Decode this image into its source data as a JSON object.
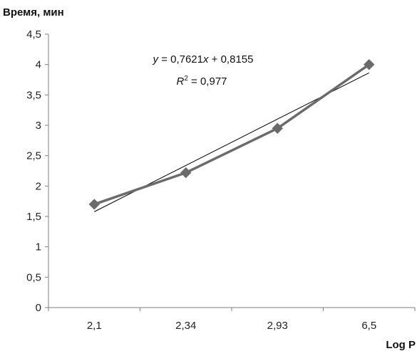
{
  "chart_data": {
    "type": "line",
    "ylabel": "Время, мин",
    "xlabel": "Log P",
    "categories": [
      "2,1",
      "2,34",
      "2,93",
      "6,5"
    ],
    "series": [
      {
        "values": [
          1.7,
          2.22,
          2.95,
          4.0
        ]
      }
    ],
    "trendline": {
      "type": "linear",
      "slope": 0.7621,
      "intercept": 0.8155,
      "equation_prefix": "y",
      "equation_body": " = 0,7621",
      "equation_var": "x",
      "equation_suffix": " + 0,8155",
      "r2_prefix": "R",
      "r2_sup": "2",
      "r2_value": " = 0,977"
    },
    "ylim": [
      0,
      4.5
    ],
    "yticks": [
      0,
      0.5,
      1,
      1.5,
      2,
      2.5,
      3,
      3.5,
      4,
      4.5
    ],
    "ytick_labels": [
      "0",
      "0,5",
      "1",
      "1,5",
      "2",
      "2,5",
      "3",
      "3,5",
      "4",
      "4,5"
    ],
    "grid": false,
    "legend": "none",
    "colors": {
      "series": "#6b6b6b",
      "trendline": "#000000",
      "axis": "#7f7f7f"
    }
  }
}
